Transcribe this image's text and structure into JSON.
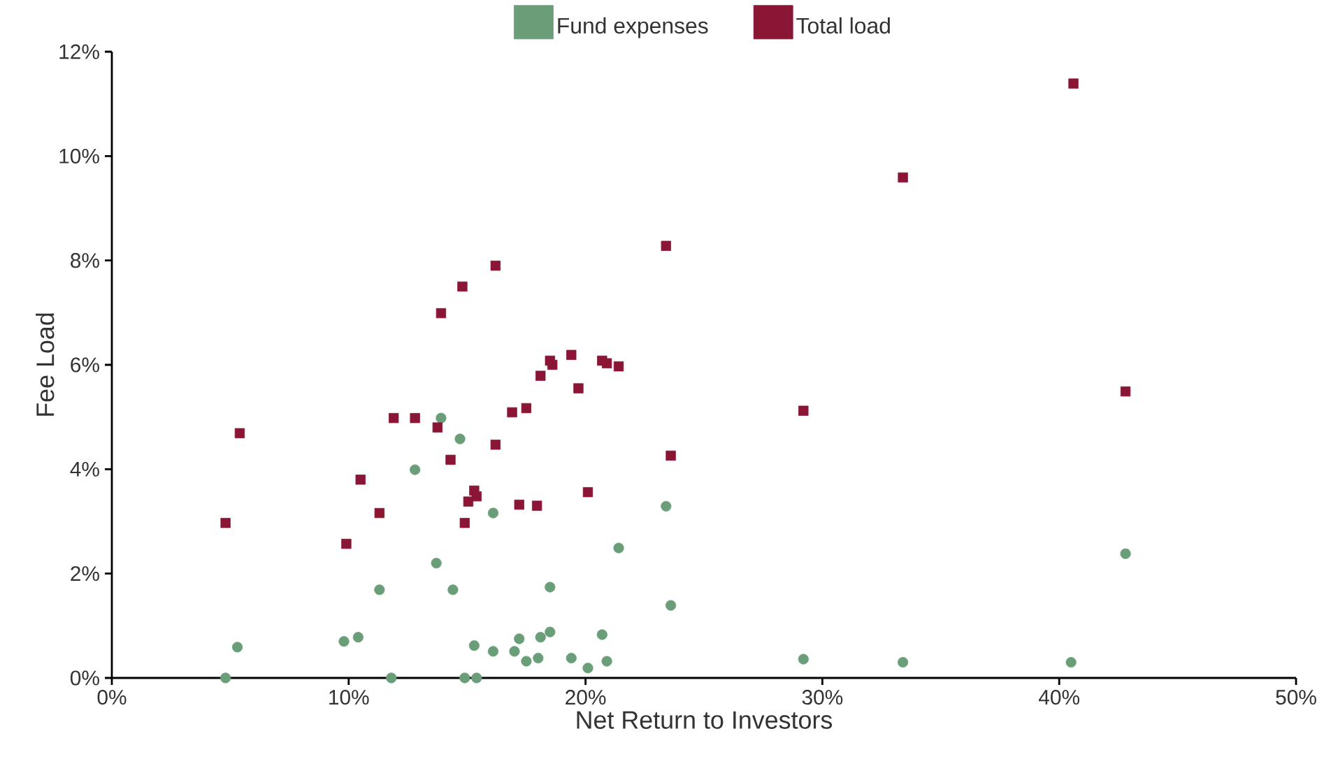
{
  "chart_data": {
    "type": "scatter",
    "xlabel": "Net Return to Investors",
    "ylabel": "Fee Load",
    "xlim": [
      0,
      50
    ],
    "ylim": [
      0,
      12
    ],
    "xticks": [
      {
        "value": 0,
        "label": "0%"
      },
      {
        "value": 10,
        "label": "10%"
      },
      {
        "value": 20,
        "label": "20%"
      },
      {
        "value": 30,
        "label": "30%"
      },
      {
        "value": 40,
        "label": "40%"
      },
      {
        "value": 50,
        "label": "50%"
      }
    ],
    "yticks": [
      {
        "value": 0,
        "label": "0%"
      },
      {
        "value": 2,
        "label": "2%"
      },
      {
        "value": 4,
        "label": "4%"
      },
      {
        "value": 6,
        "label": "6%"
      },
      {
        "value": 8,
        "label": "8%"
      },
      {
        "value": 10,
        "label": "10%"
      },
      {
        "value": 12,
        "label": "12%"
      }
    ],
    "grid": false,
    "legend": "top",
    "series": [
      {
        "name": "Fund expenses",
        "color": "#6a9e78",
        "marker": "circle",
        "x": [
          4.8,
          5.3,
          9.8,
          10.4,
          11.3,
          11.8,
          12.8,
          13.7,
          13.9,
          14.4,
          14.7,
          14.9,
          15.3,
          15.4,
          16.1,
          16.1,
          17.0,
          17.2,
          17.5,
          18.0,
          18.1,
          18.5,
          18.5,
          19.4,
          20.1,
          20.7,
          20.9,
          21.4,
          23.4,
          23.6,
          29.2,
          33.4,
          40.5,
          42.8
        ],
        "values": [
          0,
          0.59,
          0.7,
          0.78,
          1.69,
          0,
          3.99,
          2.2,
          4.98,
          1.69,
          4.58,
          0,
          0.62,
          0,
          0.51,
          3.16,
          0.51,
          0.75,
          0.32,
          0.38,
          0.78,
          0.88,
          1.74,
          0.38,
          0.19,
          0.83,
          0.32,
          2.49,
          3.29,
          1.39,
          0.36,
          0.3,
          0.3,
          2.38
        ]
      },
      {
        "name": "Total load",
        "color": "#8b1535",
        "marker": "square",
        "x": [
          4.8,
          5.4,
          9.9,
          10.5,
          11.3,
          11.9,
          12.8,
          13.75,
          14.3,
          13.9,
          14.8,
          14.9,
          15.05,
          15.3,
          15.4,
          16.2,
          16.2,
          16.9,
          17.5,
          17.2,
          17.95,
          18.1,
          18.5,
          18.6,
          19.4,
          19.7,
          20.1,
          20.7,
          20.9,
          21.4,
          23.4,
          23.6,
          29.2,
          33.4,
          40.6,
          42.8
        ],
        "values": [
          2.97,
          4.69,
          2.57,
          3.8,
          3.16,
          4.98,
          4.98,
          4.8,
          4.18,
          6.99,
          7.5,
          2.97,
          3.38,
          3.59,
          3.48,
          7.9,
          4.47,
          5.09,
          5.17,
          3.32,
          3.3,
          5.79,
          6.08,
          6.0,
          6.19,
          5.55,
          3.56,
          6.08,
          6.03,
          5.97,
          8.28,
          4.26,
          5.12,
          9.59,
          11.39,
          5.49
        ]
      }
    ]
  }
}
